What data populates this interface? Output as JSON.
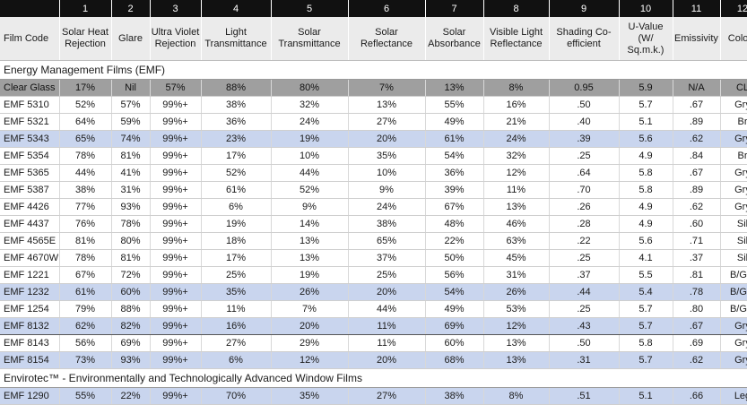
{
  "columns": {
    "numbers": [
      "",
      "1",
      "2",
      "3",
      "4",
      "5",
      "6",
      "7",
      "8",
      "9",
      "10",
      "11",
      "12"
    ],
    "headers": [
      "Film Code",
      "Solar Heat Rejection",
      "Glare",
      "Ultra Violet Rejection",
      "Light Transmittance",
      "Solar Transmittance",
      "Solar Reflectance",
      "Solar Absorbance",
      "Visible Light Reflectance",
      "Shading Co-efficient",
      "U-Value (W/ Sq.m.k.)",
      "Emissivity",
      "Colour"
    ]
  },
  "section_emf": "Energy Management Films (EMF)",
  "clear_glass": [
    "Clear Glass",
    "17%",
    "Nil",
    "57%",
    "88%",
    "80%",
    "7%",
    "13%",
    "8%",
    "0.95",
    "5.9",
    "N/A",
    "CL"
  ],
  "emf_rows": [
    {
      "style": "white",
      "cells": [
        "EMF 5310",
        "52%",
        "57%",
        "99%+",
        "38%",
        "32%",
        "13%",
        "55%",
        "16%",
        ".50",
        "5.7",
        ".67",
        "Gry"
      ]
    },
    {
      "style": "white",
      "cells": [
        "EMF 5321",
        "64%",
        "59%",
        "99%+",
        "36%",
        "24%",
        "27%",
        "49%",
        "21%",
        ".40",
        "5.1",
        ".89",
        "Br"
      ]
    },
    {
      "style": "blue",
      "cells": [
        "EMF 5343",
        "65%",
        "74%",
        "99%+",
        "23%",
        "19%",
        "20%",
        "61%",
        "24%",
        ".39",
        "5.6",
        ".62",
        "Gry"
      ]
    },
    {
      "style": "white",
      "cells": [
        "EMF 5354",
        "78%",
        "81%",
        "99%+",
        "17%",
        "10%",
        "35%",
        "54%",
        "32%",
        ".25",
        "4.9",
        ".84",
        "Br"
      ]
    },
    {
      "style": "white",
      "cells": [
        "EMF 5365",
        "44%",
        "41%",
        "99%+",
        "52%",
        "44%",
        "10%",
        "36%",
        "12%",
        ".64",
        "5.8",
        ".67",
        "Gry"
      ]
    },
    {
      "style": "white",
      "cells": [
        "EMF 5387",
        "38%",
        "31%",
        "99%+",
        "61%",
        "52%",
        "9%",
        "39%",
        "11%",
        ".70",
        "5.8",
        ".89",
        "Gry"
      ]
    },
    {
      "style": "white",
      "cells": [
        "EMF 4426",
        "77%",
        "93%",
        "99%+",
        "6%",
        "9%",
        "24%",
        "67%",
        "13%",
        ".26",
        "4.9",
        ".62",
        "Gry"
      ]
    },
    {
      "style": "white",
      "cells": [
        "EMF 4437",
        "76%",
        "78%",
        "99%+",
        "19%",
        "14%",
        "38%",
        "48%",
        "46%",
        ".28",
        "4.9",
        ".60",
        "Sil"
      ]
    },
    {
      "style": "white",
      "cells": [
        "EMF 4565E",
        "81%",
        "80%",
        "99%+",
        "18%",
        "13%",
        "65%",
        "22%",
        "63%",
        ".22",
        "5.6",
        ".71",
        "Sil"
      ]
    },
    {
      "style": "white",
      "cells": [
        "EMF 4670W",
        "78%",
        "81%",
        "99%+",
        "17%",
        "13%",
        "37%",
        "50%",
        "45%",
        ".25",
        "4.1",
        ".37",
        "Sil"
      ]
    },
    {
      "style": "white",
      "cells": [
        "EMF 1221",
        "67%",
        "72%",
        "99%+",
        "25%",
        "19%",
        "25%",
        "56%",
        "31%",
        ".37",
        "5.5",
        ".81",
        "B/Gry"
      ]
    },
    {
      "style": "blue",
      "cells": [
        "EMF 1232",
        "61%",
        "60%",
        "99%+",
        "35%",
        "26%",
        "20%",
        "54%",
        "26%",
        ".44",
        "5.4",
        ".78",
        "B/Gry"
      ]
    },
    {
      "style": "white",
      "cells": [
        "EMF 1254",
        "79%",
        "88%",
        "99%+",
        "11%",
        "7%",
        "44%",
        "49%",
        "53%",
        ".25",
        "5.7",
        ".80",
        "B/Gry"
      ]
    },
    {
      "style": "blue outlined",
      "cells": [
        "EMF 8132",
        "62%",
        "82%",
        "99%+",
        "16%",
        "20%",
        "11%",
        "69%",
        "12%",
        ".43",
        "5.7",
        ".67",
        "Gry"
      ]
    },
    {
      "style": "white",
      "cells": [
        "EMF 8143",
        "56%",
        "69%",
        "99%+",
        "27%",
        "29%",
        "11%",
        "60%",
        "13%",
        ".50",
        "5.8",
        ".69",
        "Gry"
      ]
    },
    {
      "style": "blue",
      "cells": [
        "EMF 8154",
        "73%",
        "93%",
        "99%+",
        "6%",
        "12%",
        "20%",
        "68%",
        "13%",
        ".31",
        "5.7",
        ".62",
        "Gry"
      ]
    }
  ],
  "section_envirotec": "Envirotec™ - Environmentally and Technologically Advanced Window Films",
  "envirotec_rows": [
    {
      "style": "blue",
      "cells": [
        "EMF 1290",
        "55%",
        "22%",
        "99%+",
        "70%",
        "35%",
        "27%",
        "38%",
        "8%",
        ".51",
        "5.1",
        ".66",
        "Leg"
      ]
    }
  ]
}
